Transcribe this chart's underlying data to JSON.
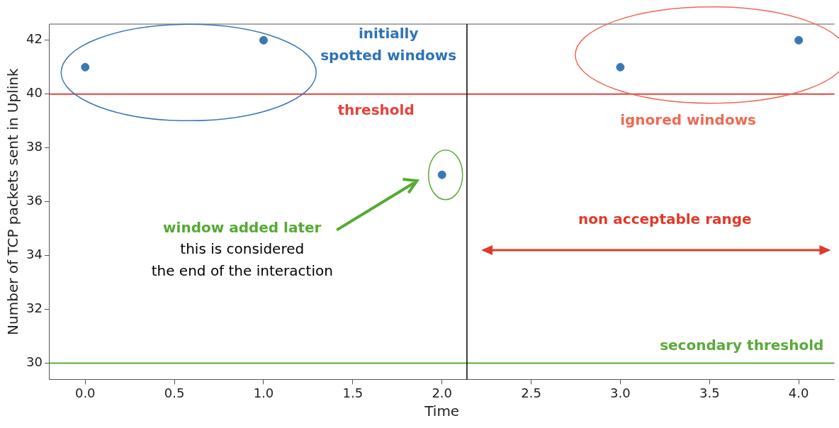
{
  "chart_data": {
    "type": "scatter",
    "xlabel": "Time",
    "ylabel": "Number of TCP packets sent in Uplink",
    "series": [
      {
        "color": "#3a78b5",
        "x": [
          0,
          1,
          2,
          3,
          4
        ],
        "values": [
          41,
          42,
          37,
          41,
          42
        ]
      }
    ],
    "xlim": [
      -0.2,
      4.2
    ],
    "ylim": [
      29.4,
      42.6
    ],
    "xticks": [
      {
        "value": 0,
        "label": "0.0"
      },
      {
        "value": 0.5,
        "label": "0.5"
      },
      {
        "value": 1,
        "label": "1.0"
      },
      {
        "value": 1.5,
        "label": "1.5"
      },
      {
        "value": 2,
        "label": "2.0"
      },
      {
        "value": 2.5,
        "label": "2.5"
      },
      {
        "value": 3,
        "label": "3.0"
      },
      {
        "value": 3.5,
        "label": "3.5"
      },
      {
        "value": 4,
        "label": "4.0"
      }
    ],
    "yticks": [
      30,
      32,
      34,
      36,
      38,
      40,
      42
    ],
    "ref_lines": [
      {
        "axis": "y",
        "value": 40,
        "label": "threshold",
        "color": "#e8413a"
      },
      {
        "axis": "y",
        "value": 30,
        "label": "secondary threshold",
        "color": "#5aaa3c"
      },
      {
        "axis": "x",
        "value": 2.14,
        "color": "#000000"
      }
    ],
    "annotations": [
      "initially\nspotted windows",
      "ignored windows",
      "window added later",
      "this is considered\nthe end of the interaction",
      "non acceptable range"
    ],
    "marker": "circle",
    "grid": false,
    "legend": false
  }
}
